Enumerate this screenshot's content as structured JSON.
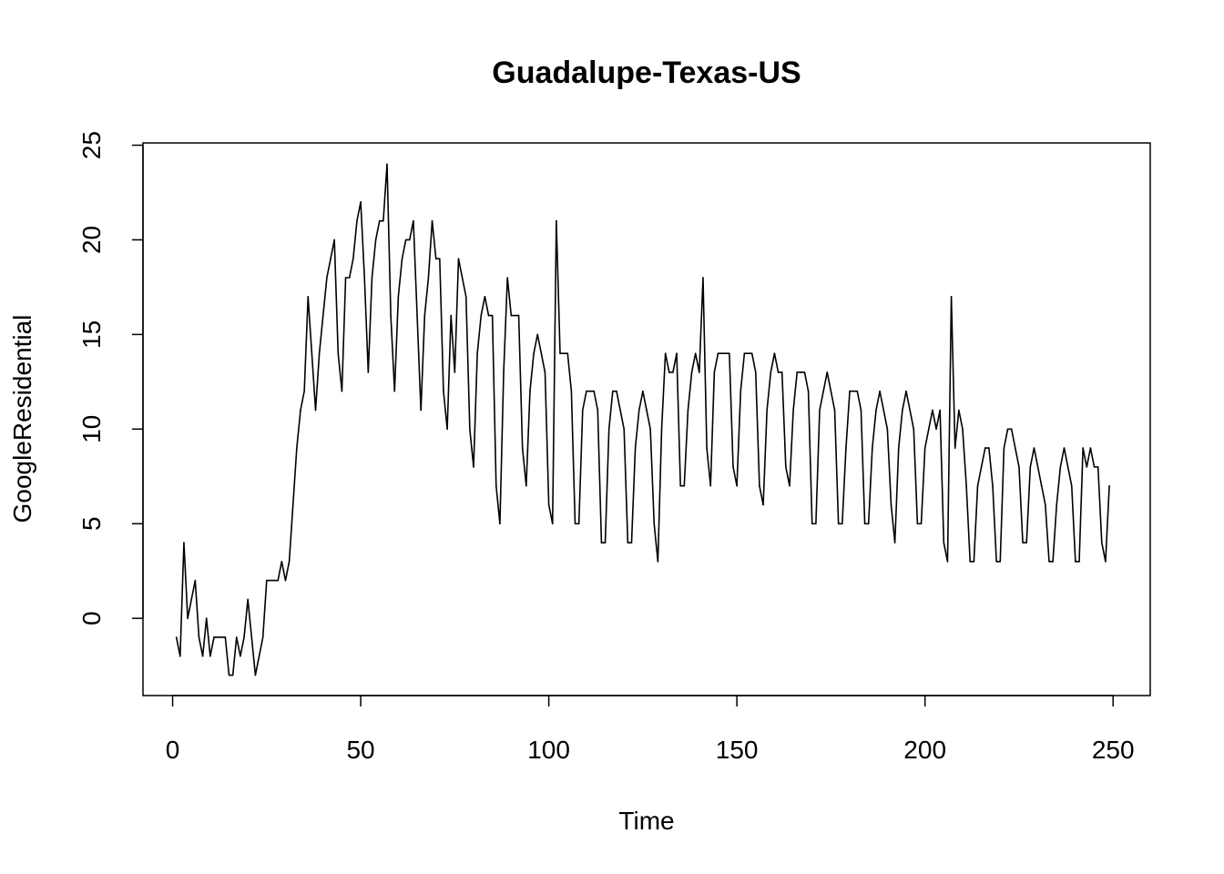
{
  "chart_data": {
    "type": "line",
    "title": "Guadalupe-Texas-US",
    "xlabel": "Time",
    "ylabel": "GoogleResidential",
    "xlim": [
      -7.88,
      259.88
    ],
    "ylim": [
      -4.08,
      25.12
    ],
    "xticks": [
      0,
      50,
      100,
      150,
      200,
      250
    ],
    "yticks": [
      0,
      5,
      10,
      15,
      20,
      25
    ],
    "x_start": 1,
    "series": [
      {
        "name": "GoogleResidential",
        "color": "#000000",
        "values": [
          -1,
          -2,
          4,
          0,
          1,
          2,
          -1,
          -2,
          0,
          -2,
          -1,
          -1,
          -1,
          -1,
          -3,
          -3,
          -1,
          -2,
          -1,
          1,
          -1,
          -3,
          -2,
          -1,
          2,
          2,
          2,
          2,
          3,
          2,
          3,
          6,
          9,
          11,
          12,
          17,
          14,
          11,
          14,
          16,
          18,
          19,
          20,
          14,
          12,
          18,
          18,
          19,
          21,
          22,
          18,
          13,
          18,
          20,
          21,
          21,
          24,
          16,
          12,
          17,
          19,
          20,
          20,
          21,
          16,
          11,
          16,
          18,
          21,
          19,
          19,
          12,
          10,
          16,
          13,
          19,
          18,
          17,
          10,
          8,
          14,
          16,
          17,
          16,
          16,
          7,
          5,
          13,
          18,
          16,
          16,
          16,
          9,
          7,
          12,
          14,
          15,
          14,
          13,
          6,
          5,
          21,
          14,
          14,
          14,
          12,
          5,
          5,
          11,
          12,
          12,
          12,
          11,
          4,
          4,
          10,
          12,
          12,
          11,
          10,
          4,
          4,
          9,
          11,
          12,
          11,
          10,
          5,
          3,
          10,
          14,
          13,
          13,
          14,
          7,
          7,
          11,
          13,
          14,
          13,
          18,
          9,
          7,
          13,
          14,
          14,
          14,
          14,
          8,
          7,
          12,
          14,
          14,
          14,
          13,
          7,
          6,
          11,
          13,
          14,
          13,
          13,
          8,
          7,
          11,
          13,
          13,
          13,
          12,
          5,
          5,
          11,
          12,
          13,
          12,
          11,
          5,
          5,
          9,
          12,
          12,
          12,
          11,
          5,
          5,
          9,
          11,
          12,
          11,
          10,
          6,
          4,
          9,
          11,
          12,
          11,
          10,
          5,
          5,
          9,
          10,
          11,
          10,
          11,
          4,
          3,
          17,
          9,
          11,
          10,
          7,
          3,
          3,
          7,
          8,
          9,
          9,
          7,
          3,
          3,
          9,
          10,
          10,
          9,
          8,
          4,
          4,
          8,
          9,
          8,
          7,
          6,
          3,
          3,
          6,
          8,
          9,
          8,
          7,
          3,
          3,
          9,
          8,
          9,
          8,
          8,
          4,
          3,
          7
        ]
      }
    ]
  }
}
